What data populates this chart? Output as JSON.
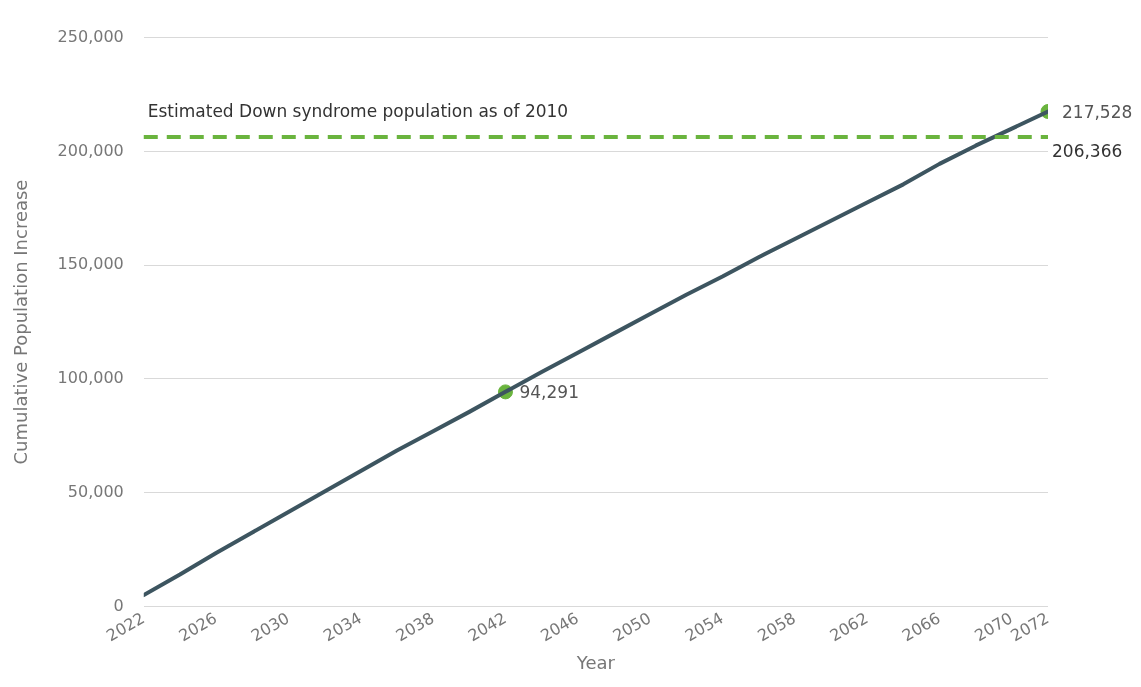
{
  "chart_data": {
    "type": "line",
    "xlabel": "Year",
    "ylabel": "Cumulative Population Increase",
    "xlim": [
      2022,
      2072
    ],
    "xticks": [
      2022,
      2026,
      2030,
      2034,
      2038,
      2042,
      2046,
      2050,
      2054,
      2058,
      2062,
      2066,
      2070,
      2072
    ],
    "ylim": [
      0,
      250000
    ],
    "yticks": [
      {
        "value": 0,
        "label": "0"
      },
      {
        "value": 50000,
        "label": "50,000"
      },
      {
        "value": 100000,
        "label": "100,000"
      },
      {
        "value": 150000,
        "label": "150,000"
      },
      {
        "value": 200000,
        "label": "200,000"
      },
      {
        "value": 250000,
        "label": "250,000"
      }
    ],
    "grid": "y",
    "legend": false,
    "series": [
      {
        "type": "line",
        "color": "#3d5560",
        "marker": "none",
        "x": [
          2022,
          2024,
          2026,
          2028,
          2030,
          2032,
          2034,
          2036,
          2038,
          2040,
          2042,
          2044,
          2046,
          2048,
          2050,
          2052,
          2054,
          2056,
          2058,
          2060,
          2062,
          2064,
          2066,
          2068,
          2070,
          2072
        ],
        "values": [
          5000,
          14000,
          23500,
          32500,
          41500,
          50500,
          59500,
          68500,
          77000,
          85500,
          94300,
          103000,
          111500,
          120000,
          128500,
          137000,
          145000,
          153500,
          161500,
          169500,
          177500,
          185500,
          194500,
          202500,
          210000,
          217500
        ]
      },
      {
        "type": "scatter",
        "color": "#6ab43e",
        "marker": "circle",
        "x": [
          2042,
          2072
        ],
        "values": [
          94291,
          217528
        ],
        "value_labels": [
          "94,291",
          "217,528"
        ]
      }
    ],
    "ref_lines": [
      {
        "axis": "y",
        "value": 206366,
        "label": "Estimated Down syndrome population as of 2010",
        "color": "#6ab43e",
        "line_style": "dashed"
      }
    ],
    "annotations": [
      {
        "text": "206,366",
        "x": 2072,
        "y": 206366
      }
    ]
  }
}
